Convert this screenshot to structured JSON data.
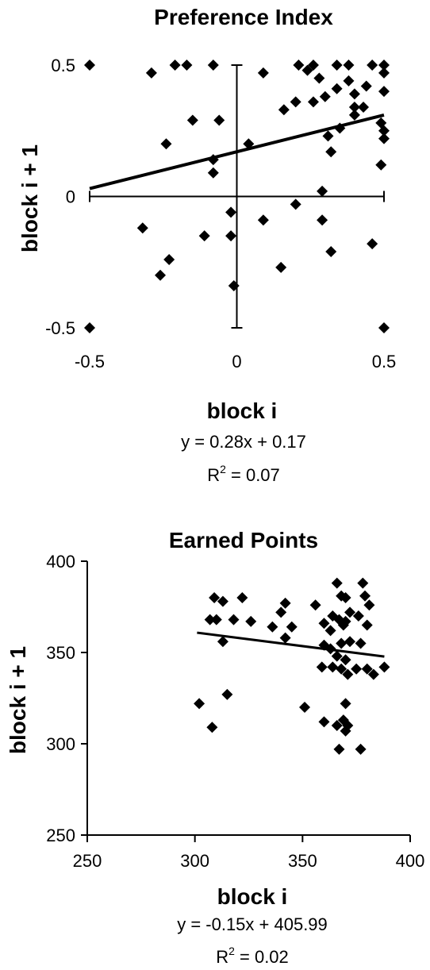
{
  "chart_data": [
    {
      "type": "scatter",
      "title": "Preference Index",
      "xlabel": "block i",
      "ylabel": "block i + 1",
      "xlim": [
        -0.5,
        0.5
      ],
      "ylim": [
        -0.5,
        0.5
      ],
      "xticks": [
        "-0.5",
        "0",
        "0.5"
      ],
      "yticks": [
        "0.5",
        "0",
        "-0.5"
      ],
      "axes_style": "crossing at origin",
      "equation": "y = 0.28x + 0.17",
      "r2_prefix": "R",
      "r2_sup": "2",
      "r2_value": " = 0.07",
      "trendline": {
        "slope": 0.28,
        "intercept": 0.17
      },
      "points": [
        [
          -0.5,
          0.5
        ],
        [
          -0.29,
          0.47
        ],
        [
          -0.21,
          0.5
        ],
        [
          -0.17,
          0.5
        ],
        [
          -0.08,
          0.5
        ],
        [
          -0.15,
          0.29
        ],
        [
          -0.06,
          0.29
        ],
        [
          0.09,
          0.47
        ],
        [
          0.21,
          0.5
        ],
        [
          0.24,
          0.48
        ],
        [
          0.26,
          0.5
        ],
        [
          0.34,
          0.5
        ],
        [
          0.38,
          0.5
        ],
        [
          0.46,
          0.5
        ],
        [
          0.5,
          0.5
        ],
        [
          0.28,
          0.45
        ],
        [
          0.38,
          0.44
        ],
        [
          0.44,
          0.42
        ],
        [
          0.5,
          0.47
        ],
        [
          0.34,
          0.41
        ],
        [
          0.4,
          0.39
        ],
        [
          0.5,
          0.4
        ],
        [
          0.3,
          0.38
        ],
        [
          0.2,
          0.36
        ],
        [
          0.26,
          0.36
        ],
        [
          0.4,
          0.34
        ],
        [
          0.43,
          0.34
        ],
        [
          0.16,
          0.33
        ],
        [
          0.4,
          0.31
        ],
        [
          0.35,
          0.26
        ],
        [
          0.49,
          0.28
        ],
        [
          0.31,
          0.23
        ],
        [
          0.5,
          0.22
        ],
        [
          0.5,
          0.25
        ],
        [
          -0.24,
          0.2
        ],
        [
          0.04,
          0.2
        ],
        [
          0.32,
          0.17
        ],
        [
          -0.08,
          0.14
        ],
        [
          -0.08,
          0.09
        ],
        [
          0.49,
          0.12
        ],
        [
          0.29,
          0.02
        ],
        [
          0.2,
          -0.03
        ],
        [
          -0.02,
          -0.06
        ],
        [
          0.09,
          -0.09
        ],
        [
          0.29,
          -0.09
        ],
        [
          -0.32,
          -0.12
        ],
        [
          -0.11,
          -0.15
        ],
        [
          -0.02,
          -0.15
        ],
        [
          0.46,
          -0.18
        ],
        [
          0.32,
          -0.21
        ],
        [
          -0.23,
          -0.24
        ],
        [
          -0.26,
          -0.3
        ],
        [
          0.15,
          -0.27
        ],
        [
          -0.01,
          -0.34
        ],
        [
          -0.5,
          -0.5
        ],
        [
          0.5,
          -0.5
        ]
      ]
    },
    {
      "type": "scatter",
      "title": "Earned Points",
      "xlabel": "block i",
      "ylabel": "block i + 1",
      "xlim": [
        250,
        400
      ],
      "ylim": [
        250,
        400
      ],
      "xticks": [
        "250",
        "300",
        "350",
        "400"
      ],
      "yticks": [
        "400",
        "350",
        "300",
        "250"
      ],
      "axes_style": "left-bottom frame",
      "equation": "y = -0.15x + 405.99",
      "r2_prefix": "R",
      "r2_sup": "2",
      "r2_value": " = 0.02",
      "trendline": {
        "slope": -0.15,
        "intercept": 405.99,
        "x_range": [
          301,
          388
        ]
      },
      "points": [
        [
          309,
          380
        ],
        [
          313,
          378
        ],
        [
          322,
          380
        ],
        [
          307,
          368
        ],
        [
          310,
          368
        ],
        [
          318,
          368
        ],
        [
          326,
          367
        ],
        [
          313,
          356
        ],
        [
          342,
          377
        ],
        [
          340,
          372
        ],
        [
          336,
          364
        ],
        [
          345,
          364
        ],
        [
          342,
          358
        ],
        [
          356,
          376
        ],
        [
          366,
          388
        ],
        [
          368,
          381
        ],
        [
          370,
          380
        ],
        [
          378,
          388
        ],
        [
          379,
          381
        ],
        [
          381,
          376
        ],
        [
          364,
          370
        ],
        [
          367,
          368
        ],
        [
          370,
          367
        ],
        [
          372,
          372
        ],
        [
          376,
          370
        ],
        [
          380,
          365
        ],
        [
          360,
          366
        ],
        [
          363,
          362
        ],
        [
          369,
          365
        ],
        [
          360,
          354
        ],
        [
          363,
          352
        ],
        [
          368,
          355
        ],
        [
          372,
          356
        ],
        [
          377,
          355
        ],
        [
          366,
          348
        ],
        [
          370,
          346
        ],
        [
          359,
          342
        ],
        [
          364,
          342
        ],
        [
          368,
          341
        ],
        [
          375,
          341
        ],
        [
          380,
          341
        ],
        [
          388,
          342
        ],
        [
          371,
          338
        ],
        [
          383,
          338
        ],
        [
          302,
          322
        ],
        [
          315,
          327
        ],
        [
          308,
          309
        ],
        [
          351,
          320
        ],
        [
          370,
          322
        ],
        [
          360,
          312
        ],
        [
          369,
          313
        ],
        [
          366,
          310
        ],
        [
          371,
          310
        ],
        [
          370,
          307
        ],
        [
          367,
          297
        ],
        [
          377,
          297
        ]
      ]
    }
  ]
}
